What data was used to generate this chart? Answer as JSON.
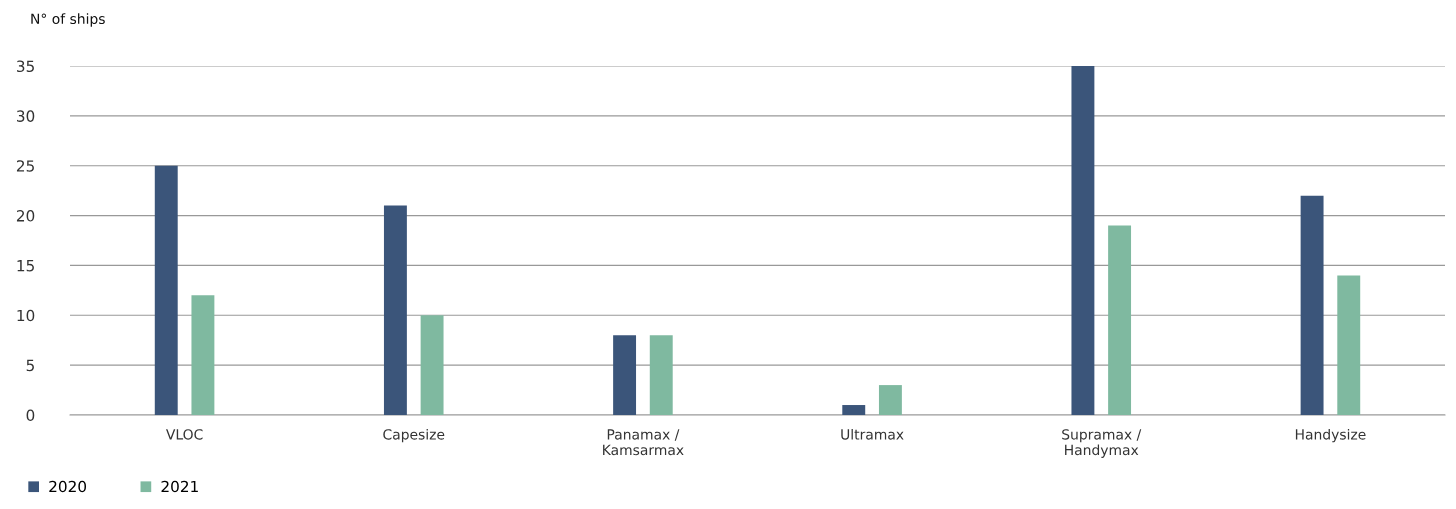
{
  "chart_data": {
    "type": "bar",
    "ylabel": "N° of ships",
    "categories": [
      "VLOC",
      "Capesize",
      "Panamax /\nKamsarmax",
      "Ultramax",
      "Supramax /\nHandymax",
      "Handysize"
    ],
    "series": [
      {
        "name": "2020",
        "color": "#3b557a",
        "values": [
          25,
          21,
          8,
          1,
          35,
          22
        ]
      },
      {
        "name": "2021",
        "color": "#7fb9a0",
        "values": [
          12,
          10,
          8,
          3,
          19,
          14
        ]
      }
    ],
    "ylim": [
      0,
      35
    ],
    "yticks": [
      0,
      5,
      10,
      15,
      20,
      25,
      30,
      35
    ],
    "grid": "y",
    "legend": "bottom left"
  }
}
